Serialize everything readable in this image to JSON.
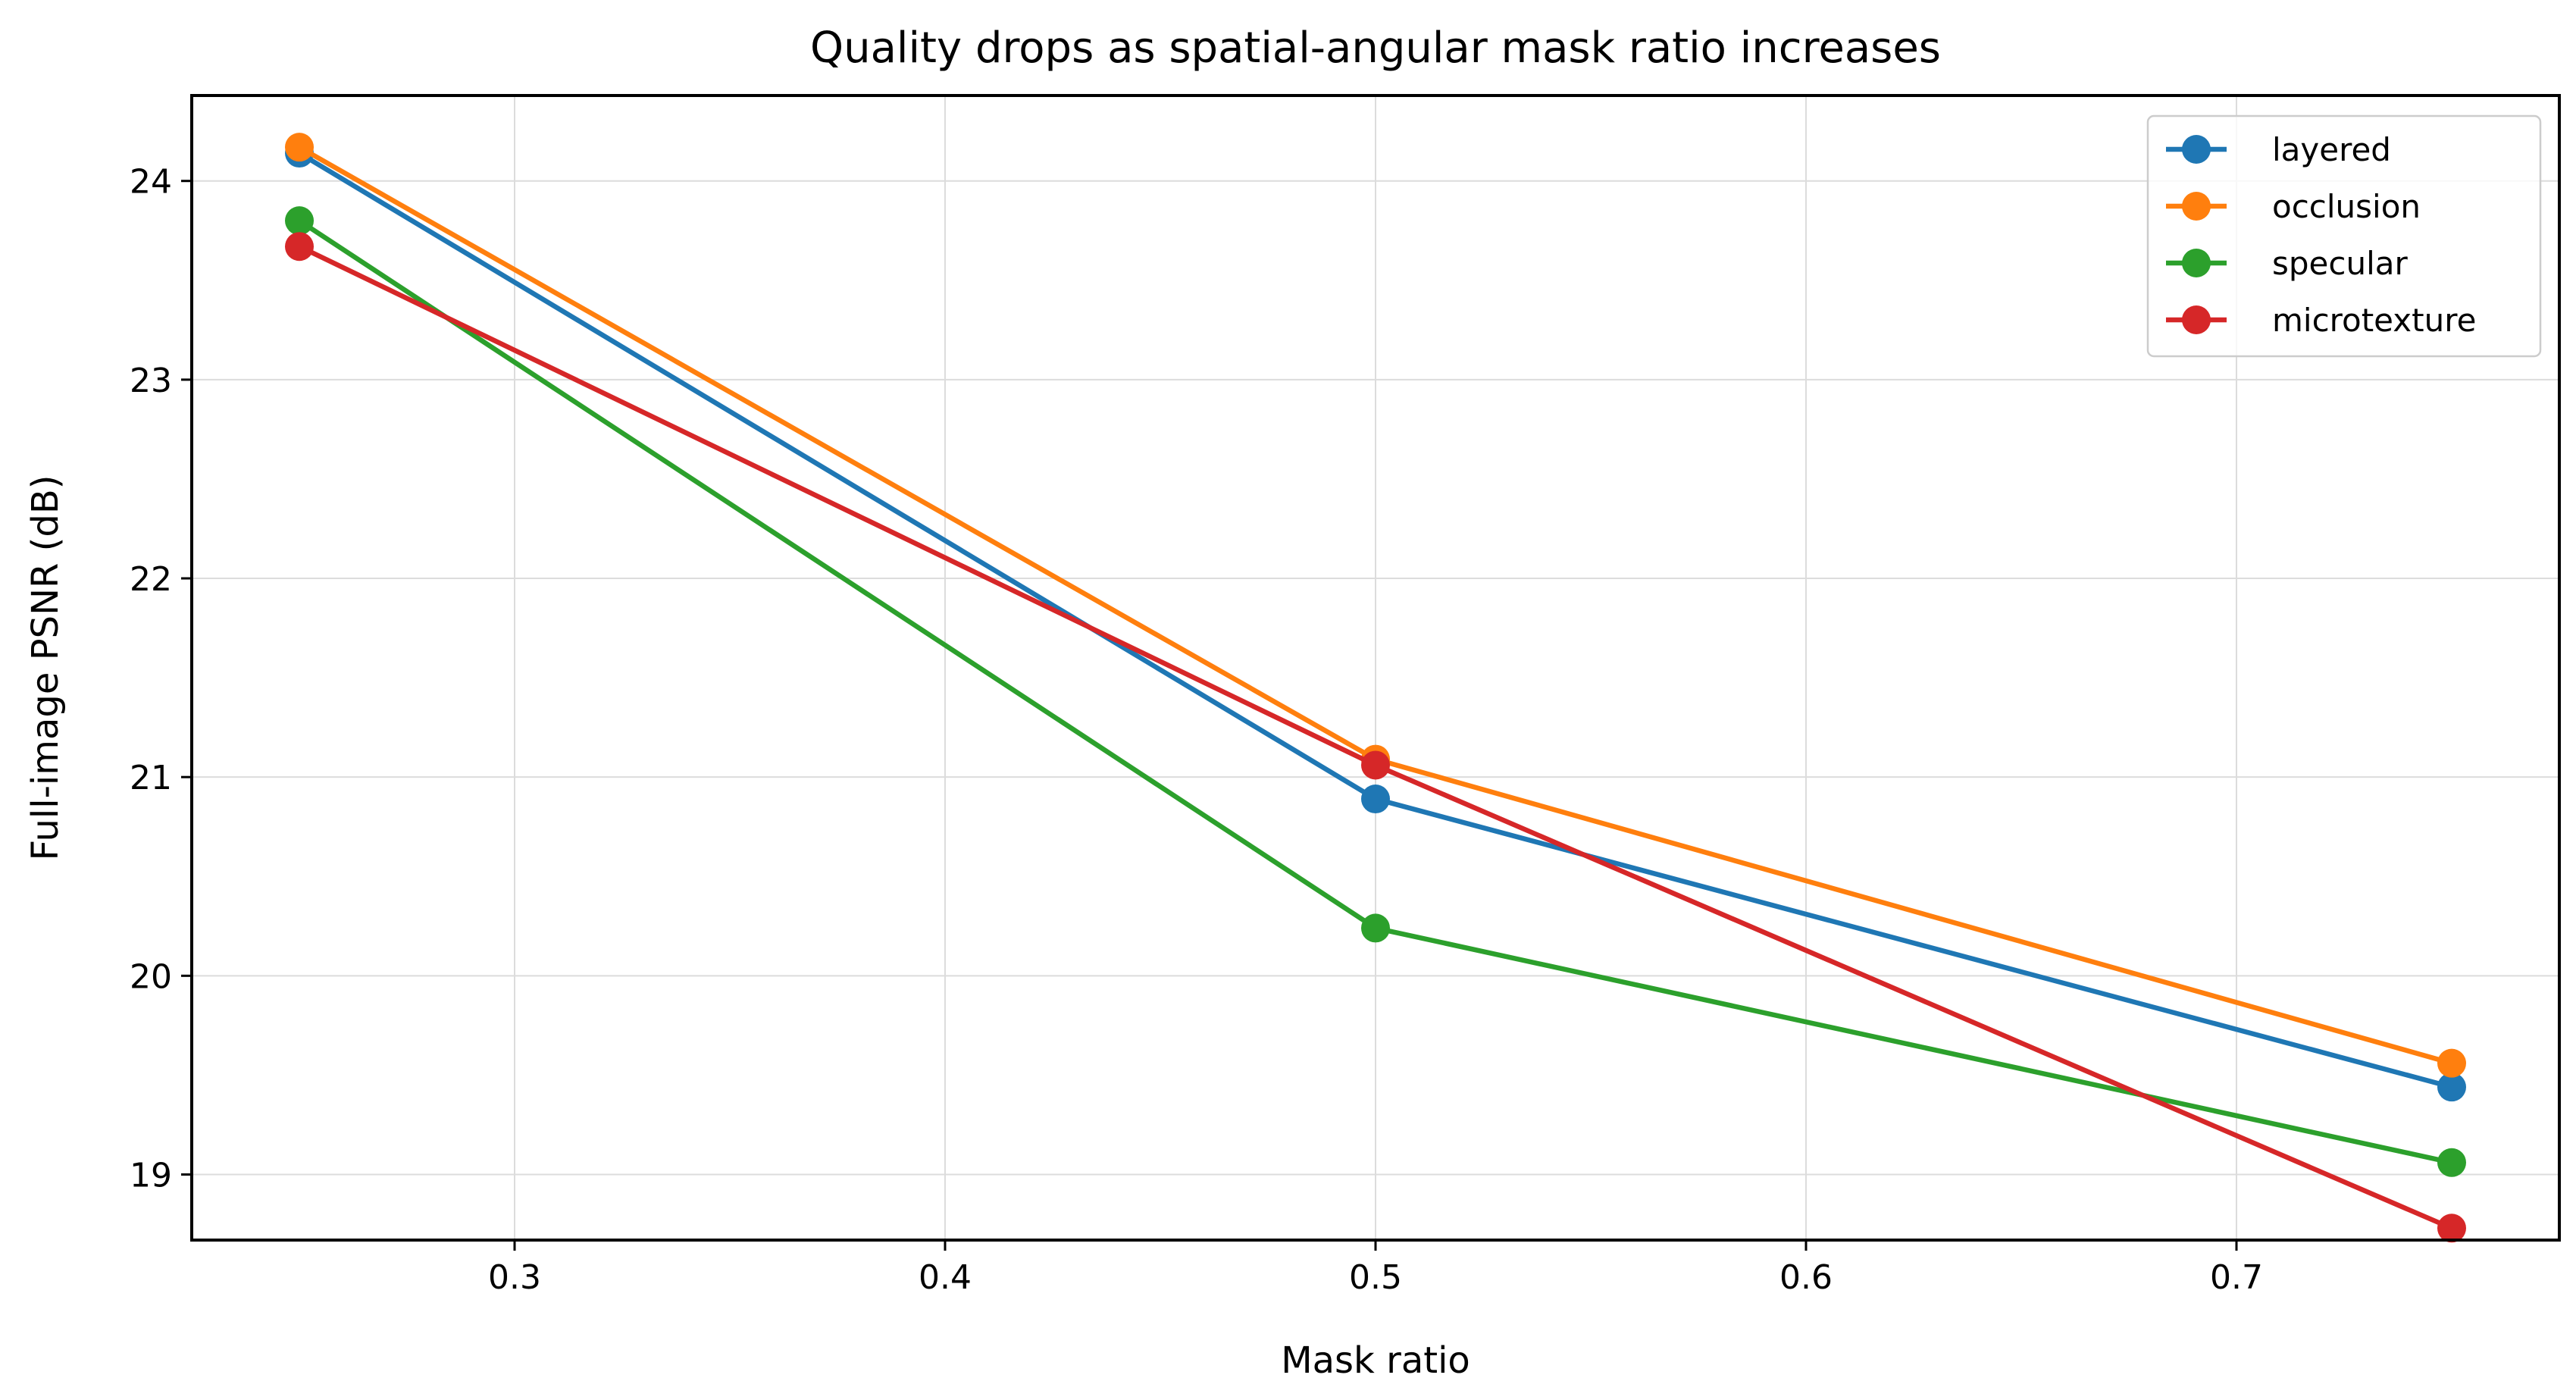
{
  "chart_data": {
    "type": "line",
    "title": "Quality drops as spatial-angular mask ratio increases",
    "xlabel": "Mask ratio",
    "ylabel": "Full-image PSNR (dB)",
    "x": [
      0.25,
      0.5,
      0.75
    ],
    "xlim": [
      0.225,
      0.775
    ],
    "ylim": [
      18.67,
      24.43
    ],
    "xticks": [
      0.3,
      0.4,
      0.5,
      0.6,
      0.7
    ],
    "xtick_labels": [
      "0.3",
      "0.4",
      "0.5",
      "0.6",
      "0.7"
    ],
    "yticks": [
      19,
      20,
      21,
      22,
      23,
      24
    ],
    "ytick_labels": [
      "19",
      "20",
      "21",
      "22",
      "23",
      "24"
    ],
    "grid": true,
    "legend_position": "top-right",
    "series": [
      {
        "name": "layered",
        "color": "#1f77b4",
        "values": [
          24.14,
          20.89,
          19.44
        ]
      },
      {
        "name": "occlusion",
        "color": "#ff7f0e",
        "values": [
          24.17,
          21.09,
          19.56
        ]
      },
      {
        "name": "specular",
        "color": "#2ca02c",
        "values": [
          23.8,
          20.24,
          19.06
        ]
      },
      {
        "name": "microtexture",
        "color": "#d62728",
        "values": [
          23.67,
          21.06,
          18.73
        ]
      }
    ]
  }
}
